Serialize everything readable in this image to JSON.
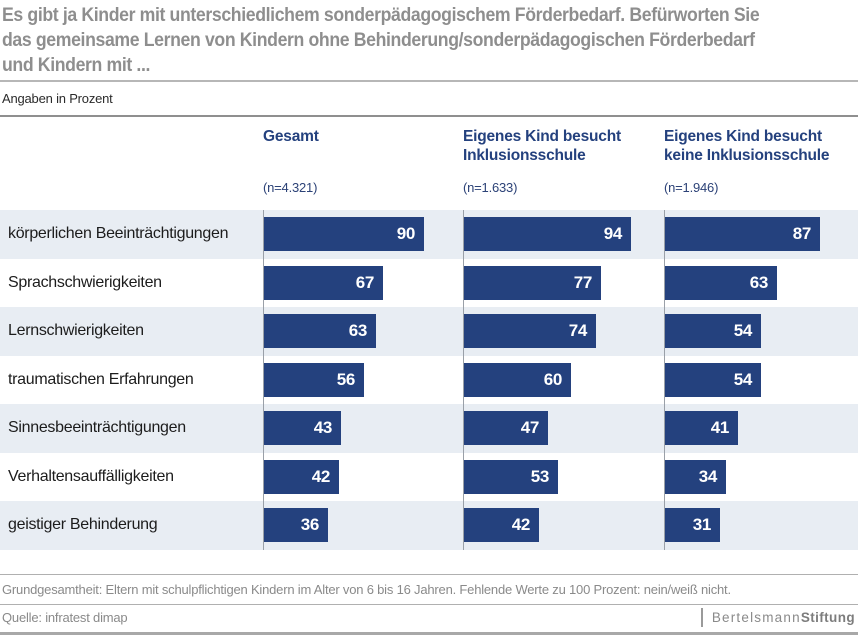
{
  "title": {
    "line1": "Es gibt ja Kinder mit unterschiedlichem sonderpädagogischem Förderbedarf. Befürworten Sie",
    "line2": "das gemeinsame Lernen von Kindern ohne Behinderung/sonderpädagogischen Förderbedarf",
    "line3": "und Kindern mit ..."
  },
  "subtitle": "Angaben in Prozent",
  "chart_data": {
    "type": "bar",
    "orientation": "horizontal",
    "title": "Es gibt ja Kinder mit unterschiedlichem sonderpädagogischem Förderbedarf. Befürworten Sie das gemeinsame Lernen von Kindern ohne Behinderung/sonderpädagogischen Förderbedarf und Kindern mit ...",
    "subtitle": "Angaben in Prozent",
    "categories": [
      "körperlichen Beeinträchtigungen",
      "Sprachschwierigkeiten",
      "Lernschwierigkeiten",
      "traumatischen Erfahrungen",
      "Sinnesbeeinträchtigungen",
      "Verhaltensauffälligkeiten",
      "geistiger Behinderung"
    ],
    "series": [
      {
        "name": "Gesamt",
        "n": "(n=4.321)",
        "values": [
          90,
          67,
          63,
          56,
          43,
          42,
          36
        ]
      },
      {
        "name": "Eigenes Kind besucht Inklusionsschule",
        "n": "(n=1.633)",
        "values": [
          94,
          77,
          74,
          60,
          47,
          53,
          42
        ]
      },
      {
        "name": "Eigenes Kind besucht keine Inklusionsschule",
        "n": "(n=1.946)",
        "values": [
          87,
          63,
          54,
          54,
          41,
          34,
          31
        ]
      }
    ],
    "xlim": [
      0,
      100
    ],
    "value_labels": true,
    "bar_color": "#24417e",
    "legend_position": "top-columns",
    "grid": false
  },
  "footer": {
    "note": "Grundgesamtheit: Eltern mit schulpflichtigen Kindern im Alter von 6 bis 16 Jahren. Fehlende Werte zu 100 Prozent: nein/weiß nicht.",
    "source": "Quelle: infratest dimap"
  },
  "logo": {
    "part1": "Bertelsmann",
    "part2": "Stiftung"
  },
  "colors": {
    "bar": "#24417e",
    "header_text": "#24417e",
    "row_alt_bg": "#e8edf3",
    "title_text": "#8e8e8e",
    "footer_text": "#8a8a8a"
  }
}
